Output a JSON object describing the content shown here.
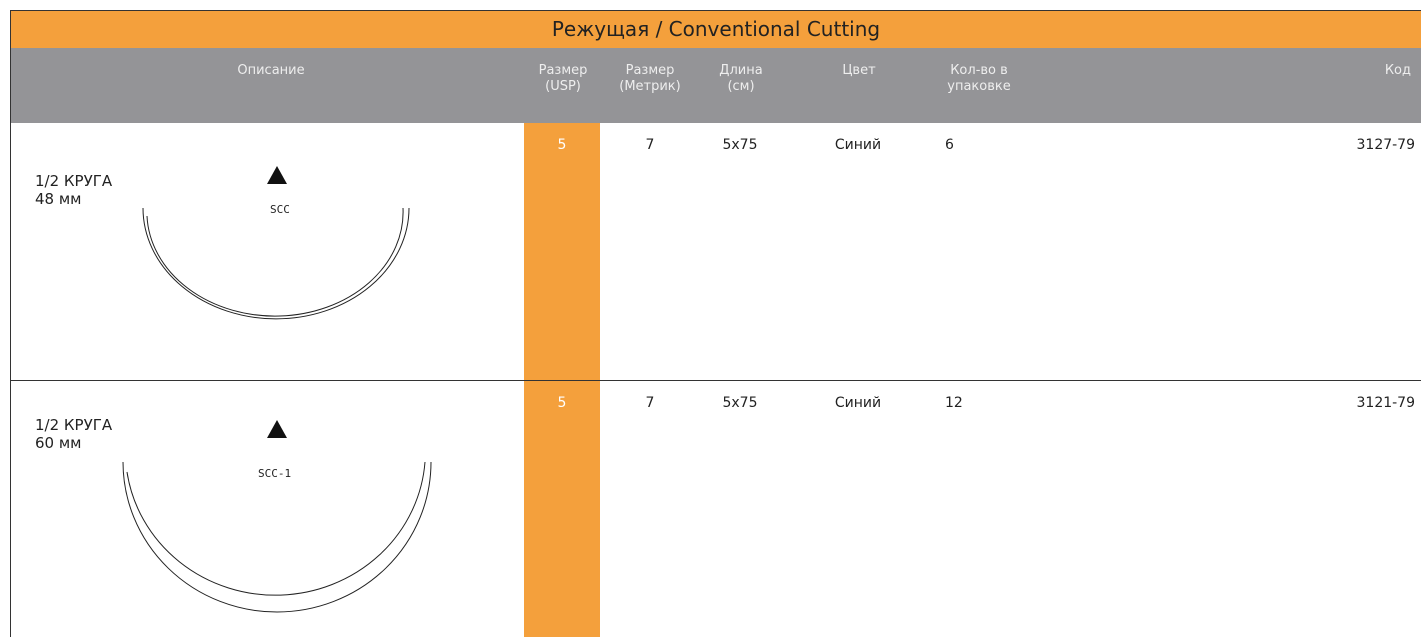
{
  "header": {
    "title": "Режущая / Conventional Cutting"
  },
  "table": {
    "columns": [
      "Описание",
      "Размер (USP)",
      "Размер (Метрик)",
      "Длина (см)",
      "Цвет",
      "Кол-во в упаковке",
      "Код"
    ],
    "rows": [
      {
        "description": [
          "1/2 КРУГА",
          "48 мм"
        ],
        "needle": "SCC",
        "usp": "5",
        "metric": "7",
        "length": "5x75",
        "color": "Синий",
        "pack": "6",
        "code": "3127-79"
      },
      {
        "description": [
          "1/2 КРУГА",
          "60 мм"
        ],
        "needle": "SCC-1",
        "usp": "5",
        "metric": "7",
        "length": "5x75",
        "color": "Синий",
        "pack": "12",
        "code": "3121-79"
      }
    ]
  }
}
